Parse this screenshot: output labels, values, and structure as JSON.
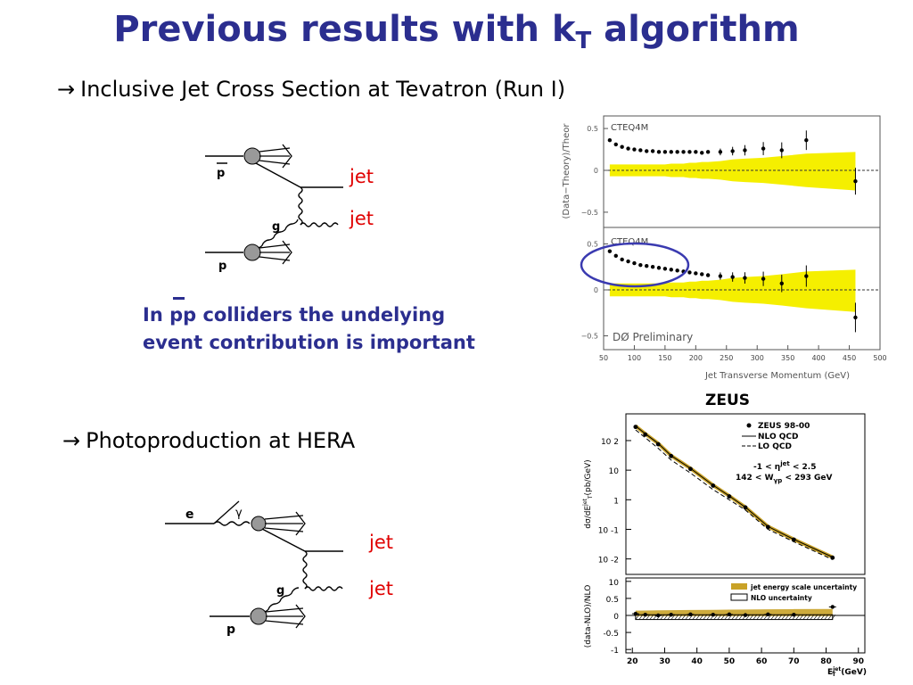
{
  "slide": {
    "title_main": "Previous results with k",
    "title_sub": "T",
    "title_end": " algorithm",
    "bullet1": "Inclusive Jet Cross Section at Tevatron (Run I)",
    "bullet2": "Photoproduction at HERA",
    "note_pre": "In ",
    "note_pp": "pp",
    "note_post": " colliders the undelying",
    "note_line2": "event contribution is important"
  },
  "diagram1": {
    "pbar_label": "p",
    "p_label": "p",
    "g_label": "g",
    "jet1": "jet",
    "jet2": "jet"
  },
  "diagram2": {
    "e_label": "e",
    "gamma_label": "γ",
    "p_label": "p",
    "g_label": "g",
    "jet1": "jet",
    "jet2": "jet"
  },
  "colors": {
    "title": "#2b2e8f",
    "jet": "#e00000",
    "band": "#f5ef00",
    "circle": "#3a3ab0"
  },
  "chart_data": [
    {
      "type": "scatter",
      "panels": [
        {
          "label": "CTEQ4M",
          "x": [
            60,
            70,
            80,
            90,
            100,
            110,
            120,
            130,
            140,
            150,
            160,
            170,
            180,
            190,
            200,
            210,
            220,
            240,
            260,
            280,
            310,
            340,
            380,
            460
          ],
          "y": [
            0.36,
            0.31,
            0.28,
            0.26,
            0.25,
            0.24,
            0.23,
            0.23,
            0.22,
            0.22,
            0.22,
            0.22,
            0.22,
            0.22,
            0.22,
            0.21,
            0.22,
            0.22,
            0.23,
            0.24,
            0.26,
            0.24,
            0.36,
            -0.13
          ],
          "band_upper": [
            0.07,
            0.07,
            0.07,
            0.07,
            0.07,
            0.07,
            0.07,
            0.07,
            0.07,
            0.07,
            0.08,
            0.08,
            0.08,
            0.09,
            0.09,
            0.1,
            0.1,
            0.11,
            0.13,
            0.14,
            0.15,
            0.17,
            0.2,
            0.22
          ],
          "band_lower": [
            -0.07,
            -0.07,
            -0.07,
            -0.07,
            -0.07,
            -0.07,
            -0.07,
            -0.07,
            -0.07,
            -0.07,
            -0.08,
            -0.08,
            -0.08,
            -0.09,
            -0.09,
            -0.1,
            -0.1,
            -0.11,
            -0.13,
            -0.14,
            -0.15,
            -0.17,
            -0.2,
            -0.24
          ]
        },
        {
          "label": "CTEQ4M",
          "annotation": "DØ Preliminary",
          "x": [
            60,
            70,
            80,
            90,
            100,
            110,
            120,
            130,
            140,
            150,
            160,
            170,
            180,
            190,
            200,
            210,
            220,
            240,
            260,
            280,
            310,
            340,
            380,
            460
          ],
          "y": [
            0.42,
            0.37,
            0.33,
            0.31,
            0.29,
            0.27,
            0.26,
            0.25,
            0.24,
            0.23,
            0.22,
            0.21,
            0.2,
            0.19,
            0.18,
            0.17,
            0.16,
            0.15,
            0.14,
            0.13,
            0.12,
            0.07,
            0.15,
            -0.3
          ],
          "band_upper": [
            0.07,
            0.07,
            0.07,
            0.07,
            0.07,
            0.07,
            0.07,
            0.07,
            0.07,
            0.07,
            0.08,
            0.08,
            0.08,
            0.09,
            0.09,
            0.1,
            0.1,
            0.11,
            0.13,
            0.14,
            0.15,
            0.17,
            0.2,
            0.22
          ],
          "band_lower": [
            -0.07,
            -0.07,
            -0.07,
            -0.07,
            -0.07,
            -0.07,
            -0.07,
            -0.07,
            -0.07,
            -0.07,
            -0.08,
            -0.08,
            -0.08,
            -0.09,
            -0.09,
            -0.1,
            -0.1,
            -0.11,
            -0.13,
            -0.14,
            -0.15,
            -0.17,
            -0.2,
            -0.24
          ]
        }
      ],
      "ylabel": "(Data−Theory)/Theor",
      "xlabel": "Jet Transverse Momentum (GeV)",
      "xlim": [
        50,
        500
      ],
      "ylim": [
        -0.65,
        0.65
      ],
      "xticks": [
        50,
        100,
        150,
        200,
        250,
        300,
        350,
        400,
        450,
        500
      ],
      "yticks": [
        -0.5,
        0,
        0.5
      ],
      "yticklabels": [
        "−0.5",
        "0",
        "0.5"
      ]
    },
    {
      "type": "line",
      "title": "ZEUS",
      "xlabel": "E",
      "xlabel_sup": "jet",
      "xlabel_sub": "T",
      "xlabel_unit": "(GeV)",
      "top_ylabel": "dσ/dE",
      "top_ylabel_sup": "jet",
      "top_ylabel_sub": "T",
      "top_ylabel_unit": "(pb/GeV)",
      "bottom_ylabel": "(data-NLO)/NLO",
      "legend": [
        "ZEUS 98-00",
        "NLO QCD",
        "LO QCD"
      ],
      "legend_placement": "top-right",
      "cuts_line1": "-1 < η",
      "cuts_line1_sup": "jet",
      "cuts_line1_end": " < 2.5",
      "cuts_line2": "142 < W",
      "cuts_line2_sub": "γp",
      "cuts_line2_end": " < 293 GeV",
      "bottom_legend": [
        "jet energy scale uncertainty",
        "NLO uncertainty"
      ],
      "x": [
        21,
        24,
        28,
        32,
        38,
        45,
        50,
        55,
        62,
        70,
        82
      ],
      "data": [
        290,
        160,
        75,
        30,
        11,
        3.0,
        1.3,
        0.55,
        0.12,
        0.045,
        0.011
      ],
      "nlo": [
        310,
        170,
        80,
        31,
        11.5,
        3.1,
        1.35,
        0.56,
        0.125,
        0.046,
        0.0115
      ],
      "lo": [
        230,
        125,
        55,
        22,
        8,
        2.2,
        1.0,
        0.45,
        0.1,
        0.038,
        0.0095
      ],
      "ratio": [
        0.05,
        0.02,
        0.0,
        0.02,
        0.03,
        0.02,
        0.03,
        0.01,
        0.03,
        0.02,
        0.25
      ],
      "xlim": [
        18,
        92
      ],
      "ylim_log": [
        0.003,
        800
      ],
      "ylim_ratio": [
        -1.1,
        1.1
      ],
      "xticks": [
        20,
        30,
        40,
        50,
        60,
        70,
        80,
        90
      ],
      "yticks_top": [
        "10 2",
        "10",
        "1",
        "10 -1",
        "10 -2"
      ],
      "yticks_bottom": [
        "10",
        "0.5",
        "0",
        "-0.5",
        "-1"
      ]
    }
  ]
}
